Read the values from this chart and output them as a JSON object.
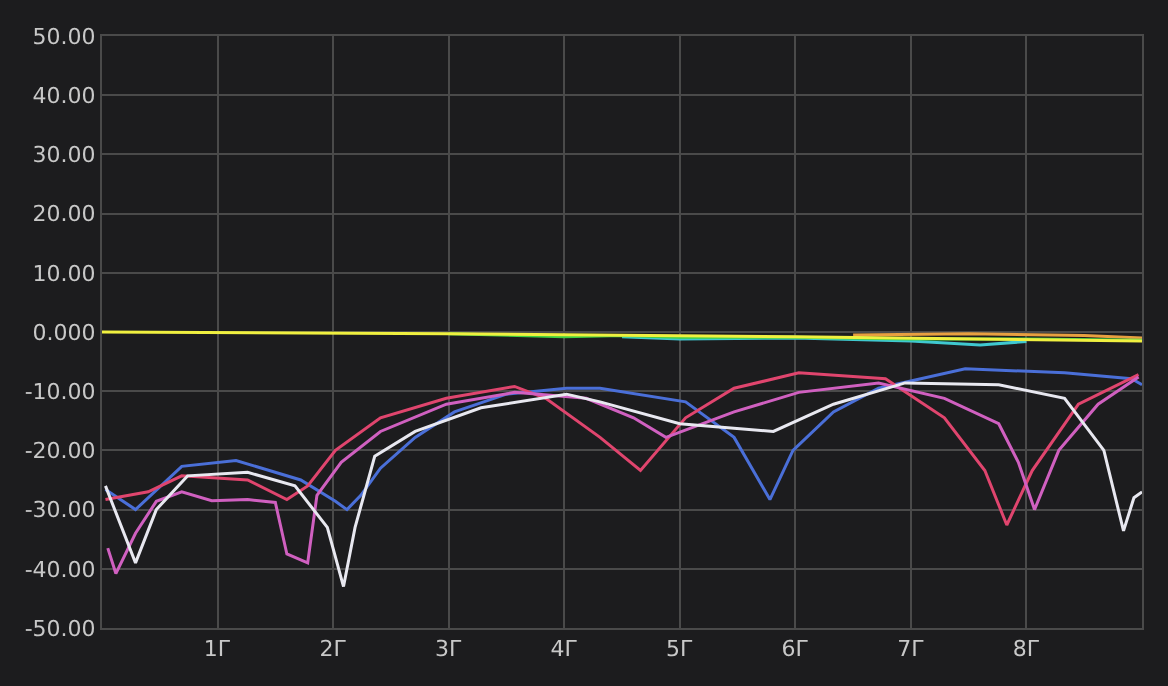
{
  "chart_data": {
    "type": "line",
    "xlim": [
      0,
      9
    ],
    "ylim": [
      -50,
      50
    ],
    "xticks": [
      {
        "value": 1,
        "label": "1Г"
      },
      {
        "value": 2,
        "label": "2Г"
      },
      {
        "value": 3,
        "label": "3Г"
      },
      {
        "value": 4,
        "label": "4Г"
      },
      {
        "value": 5,
        "label": "5Г"
      },
      {
        "value": 6,
        "label": "6Г"
      },
      {
        "value": 7,
        "label": "7Г"
      },
      {
        "value": 8,
        "label": "8Г"
      }
    ],
    "yticks": [
      {
        "value": 50,
        "label": "50.00"
      },
      {
        "value": 40,
        "label": "40.00"
      },
      {
        "value": 30,
        "label": "30.00"
      },
      {
        "value": 20,
        "label": "20.00"
      },
      {
        "value": 10,
        "label": "10.00"
      },
      {
        "value": 0,
        "label": "0.000"
      },
      {
        "value": -10,
        "label": "-10.00"
      },
      {
        "value": -20,
        "label": "-20.00"
      },
      {
        "value": -30,
        "label": "-30.00"
      },
      {
        "value": -40,
        "label": "-40.00"
      },
      {
        "value": -50,
        "label": "-50.00"
      }
    ],
    "grid": true,
    "marker": "none",
    "line_style": "solid",
    "series": [
      {
        "color": "#4a6fd8",
        "x": [
          0.03,
          0.29,
          0.69,
          1.16,
          1.72,
          2.02,
          2.12,
          2.24,
          2.41,
          2.71,
          3.05,
          3.5,
          4.02,
          4.31,
          5.05,
          5.47,
          5.78,
          5.98,
          6.33,
          6.72,
          7.47,
          8.33,
          8.91,
          9.0
        ],
        "values": [
          -26.6,
          -30,
          -22.7,
          -21.7,
          -25,
          -28.6,
          -30,
          -27.6,
          -23,
          -17.8,
          -13.5,
          -10.5,
          -9.5,
          -9.5,
          -11.8,
          -17.8,
          -28.3,
          -20,
          -13.5,
          -9.5,
          -6.2,
          -6.9,
          -7.9,
          -8.9
        ]
      },
      {
        "color": "#e0456e",
        "x": [
          0.03,
          0.4,
          0.69,
          1.26,
          1.6,
          1.78,
          2.02,
          2.41,
          2.98,
          3.57,
          3.84,
          4.31,
          4.66,
          5.05,
          5.47,
          6.03,
          6.78,
          7.29,
          7.64,
          7.83,
          8.05,
          8.45,
          8.97
        ],
        "values": [
          -28.3,
          -27,
          -24.3,
          -25,
          -28.3,
          -26,
          -20,
          -14.5,
          -11.2,
          -9.2,
          -11.2,
          -17.8,
          -23.4,
          -14.5,
          -9.5,
          -6.9,
          -7.9,
          -14.5,
          -23.4,
          -32.6,
          -23.4,
          -12.2,
          -7.2
        ]
      },
      {
        "color": "#d060c0",
        "x": [
          0.05,
          0.12,
          0.29,
          0.47,
          0.69,
          0.95,
          1.26,
          1.5,
          1.6,
          1.78,
          1.86,
          2.07,
          2.41,
          2.98,
          3.57,
          4.19,
          4.6,
          4.88,
          5.47,
          6.03,
          6.72,
          7.29,
          7.76,
          7.93,
          8.07,
          8.28,
          8.62,
          8.97
        ],
        "values": [
          -36.5,
          -40.8,
          -34,
          -28.6,
          -27,
          -28.5,
          -28.3,
          -28.8,
          -37.5,
          -39,
          -27.6,
          -22,
          -16.8,
          -12.2,
          -10.2,
          -11.2,
          -14.5,
          -17.8,
          -13.5,
          -10.2,
          -8.6,
          -11.2,
          -15.5,
          -22,
          -30,
          -20,
          -12.2,
          -7.6
        ]
      },
      {
        "color": "#e8e8f0",
        "x": [
          0.03,
          0.29,
          0.47,
          0.74,
          1.26,
          1.67,
          1.95,
          2.09,
          2.19,
          2.36,
          2.71,
          3.28,
          4.02,
          4.31,
          5.0,
          5.81,
          6.33,
          6.95,
          7.76,
          8.33,
          8.67,
          8.84,
          8.93,
          9.0
        ],
        "values": [
          -26,
          -39,
          -30,
          -24.3,
          -23.7,
          -26,
          -33,
          -43,
          -33,
          -21,
          -16.8,
          -12.8,
          -10.5,
          -11.8,
          -15.5,
          -16.8,
          -12.2,
          -8.6,
          -8.9,
          -11.2,
          -20,
          -33.6,
          -28,
          -27
        ]
      },
      {
        "color": "#3fc8d0",
        "x": [
          4.5,
          5.0,
          6.0,
          7.0,
          7.6,
          8.0
        ],
        "values": [
          -0.8,
          -1.2,
          -1.0,
          -1.5,
          -2.2,
          -1.6
        ]
      },
      {
        "color": "#e8a040",
        "x": [
          6.5,
          7.5,
          8.5,
          9.0
        ],
        "values": [
          -0.5,
          -0.3,
          -0.6,
          -1.0
        ]
      },
      {
        "color": "#40d040",
        "x": [
          3.0,
          4.0,
          4.5,
          5.0,
          6.0,
          7.0,
          8.0,
          9.0
        ],
        "values": [
          -0.3,
          -0.8,
          -0.6,
          -0.9,
          -0.9,
          -1.2,
          -1.2,
          -1.4
        ]
      },
      {
        "color": "#f0f040",
        "x": [
          0,
          3,
          6,
          9
        ],
        "values": [
          0,
          -0.3,
          -0.8,
          -1.5
        ]
      }
    ]
  }
}
